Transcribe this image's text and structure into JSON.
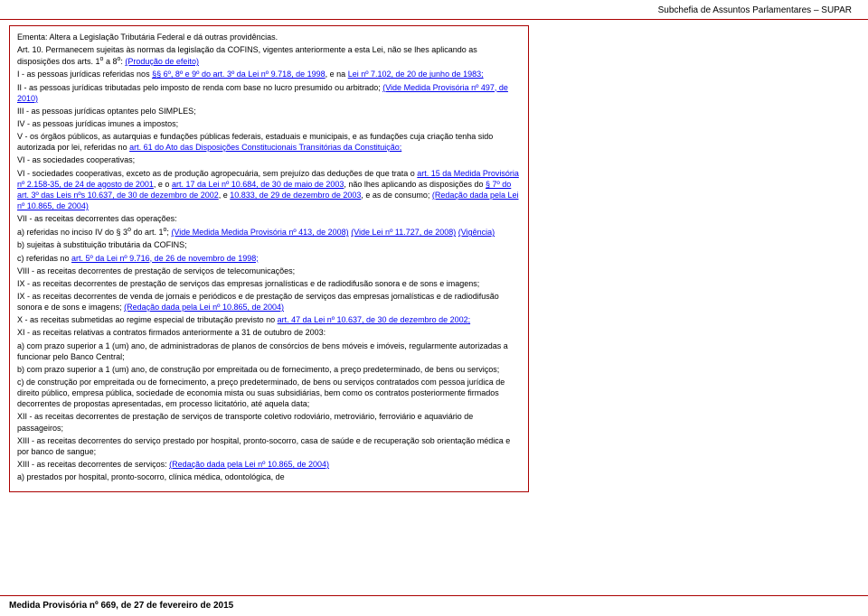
{
  "header": {
    "title": "Subchefia de Assuntos Parlamentares – SUPAR"
  },
  "footer": {
    "text": "Medida Provisória nº 669, de 27 de fevereiro de 2015"
  },
  "doc": {
    "ementa": "Ementa: Altera a Legislação Tributária Federal e dá outras providências.",
    "art10_a": "Art. 10. Permanecem sujeitas às normas da legislação da COFINS, vigentes anteriormente a esta Lei, não se lhes aplicando as disposições dos arts. 1",
    "art10_b": " a 8",
    "art10_c": ":       ",
    "link_prod_efeito": "(Produção de efeito)",
    "i_a": "I - as pessoas jurídicas referidas nos ",
    "link_arts689": "§§ 6º, 8º e 9º do art. 3º da Lei nº 9.718, de 1998",
    "i_b": ", e na ",
    "link_lei7102": "Lei nº 7.102, de 20 de junho de 1983;",
    "ii_a": "II - as pessoas jurídicas tributadas pelo imposto de renda com base no lucro presumido ou arbitrado;       ",
    "link_mp497": "(Vide Medida Provisória nº 497, de 2010)",
    "iii": "III - as pessoas jurídicas optantes pelo SIMPLES;",
    "iv": "IV - as pessoas jurídicas imunes a impostos;",
    "v_a": "V - os órgãos públicos, as autarquias e fundações públicas federais, estaduais e municipais, e as fundações cuja criação tenha sido autorizada por lei, referidas no ",
    "link_art61": "art. 61 do Ato das Disposições Constitucionais Transitórias da Constituição;",
    "vi": "VI - as sociedades cooperativas;",
    "vi2_a": "VI - sociedades cooperativas, exceto as de produção agropecuária, sem prejuízo das deduções de que trata o ",
    "link_art15mp": "art. 15 da Medida Provisória nº 2.158-35, de 24 de agosto de 2001",
    "vi2_b": ", e o ",
    "link_art17": "art. 17 da Lei nº 10.684, de 30 de maio de 2003",
    "vi2_c": ", não lhes aplicando as disposições do ",
    "link_par7": "§ 7º do art. 3º das Leis nºs 10.637, de 30 de dezembro de 2002",
    "vi2_d": ", e ",
    "link_10833": "10.833, de 29 de dezembro de 2003",
    "vi2_e": ", e as de consumo;       ",
    "link_red10865": "(Redação dada pela Lei nº 10.865, de 2004)",
    "vii": "VII - as receitas decorrentes das operações:",
    "a_a": "a) referidas no inciso IV do § 3",
    "a_b": " do art. 1",
    "a_c": ";       ",
    "link_mp413": "(Vide Medida Medida Provisória nº 413, de 2008)",
    "sp": "       ",
    "link_lei11727": "(Vide Lei nº 11.727, de 2008)",
    "link_vigencia": "(Vigência)",
    "b": "b) sujeitas à substituição tributária da COFINS;",
    "c_a": "c) referidas no ",
    "link_art5": "art. 5º da Lei nº 9.716, de 26 de novembro de 1998;",
    "viii": "VIII - as receitas decorrentes de prestação de serviços de telecomunicações;",
    "ix1": "IX - as receitas decorrentes de prestação de serviços das empresas jornalísticas e de radiodifusão sonora e de sons e imagens;",
    "ix2_a": "IX - as receitas decorrentes de venda de jornais e periódicos e de prestação de serviços das empresas jornalísticas e de radiodifusão sonora e de sons e imagens; ",
    "link_red10865b": "(Redação dada pela Lei nº 10.865, de 2004)",
    "x_a": "X - as receitas submetidas ao regime especial de tributação previsto no ",
    "link_art47": "art. 47 da Lei nº 10.637, de 30 de dezembro de 2002;",
    "xi": "XI - as receitas relativas a contratos firmados anteriormente a 31 de outubro de 2003:",
    "xi_a": "a) com prazo superior a 1 (um) ano, de administradoras de planos de consórcios de bens móveis e imóveis, regularmente autorizadas a funcionar pelo Banco Central;",
    "xi_b": "b) com prazo superior a 1 (um) ano, de construção por empreitada ou de fornecimento, a preço predeterminado, de bens ou serviços;",
    "xi_c": "c) de construção por empreitada ou de fornecimento, a preço predeterminado, de bens ou serviços contratados com pessoa jurídica de direito público, empresa pública, sociedade de economia mista ou suas subsidiárias, bem como os contratos posteriormente firmados decorrentes de propostas apresentadas, em processo licitatório, até aquela data;",
    "xii": "XII - as receitas decorrentes de prestação de serviços de transporte coletivo rodoviário, metroviário, ferroviário e aquaviário de passageiros;",
    "xiii1": "XIII - as receitas decorrentes do serviço prestado por hospital, pronto-socorro, casa de saúde e de recuperação sob orientação médica e por banco de sangue;",
    "xiii2_a": "XIII - as receitas decorrentes de serviços:       ",
    "link_red10865c": "(Redação dada pela Lei nº 10.865, de 2004)",
    "xiii2_b": "a) prestados por hospital, pronto-socorro, clínica médica, odontológica, de"
  }
}
